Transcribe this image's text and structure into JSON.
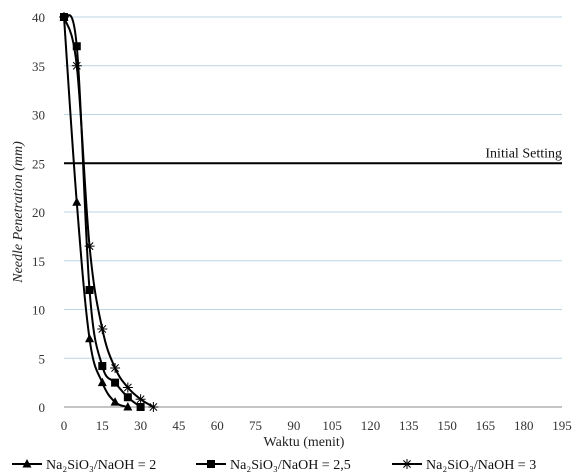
{
  "chart_data": {
    "type": "line",
    "title": "",
    "xlabel": "Waktu (menit)",
    "ylabel": "Needle Penetration (mm)",
    "xlim": [
      0,
      195
    ],
    "ylim": [
      0,
      40
    ],
    "x_ticks": [
      0,
      15,
      30,
      45,
      60,
      75,
      90,
      105,
      120,
      135,
      150,
      165,
      180,
      195
    ],
    "y_ticks": [
      0,
      5,
      10,
      15,
      20,
      25,
      30,
      35,
      40
    ],
    "grid": "horizontal",
    "legend_position": "bottom",
    "series": [
      {
        "name": "Na₂SiO₃/NaOH = 2",
        "marker": "triangle",
        "x": [
          0,
          5,
          10,
          15,
          20,
          25
        ],
        "y": [
          40,
          21,
          7,
          2.5,
          0.5,
          0
        ]
      },
      {
        "name": "Na₂SiO₃/NaOH = 2,5",
        "marker": "square",
        "x": [
          0,
          5,
          10,
          15,
          20,
          25,
          30
        ],
        "y": [
          40,
          37,
          12,
          4.2,
          2.5,
          1,
          0
        ]
      },
      {
        "name": "Na₂SiO₃/NaOH = 3",
        "marker": "star",
        "x": [
          0,
          5,
          10,
          15,
          20,
          25,
          30,
          35
        ],
        "y": [
          40,
          35,
          16.5,
          8,
          4,
          2,
          0.8,
          0
        ]
      }
    ],
    "reference_line": {
      "label": "Initial Setting",
      "y": 25
    },
    "colors": {
      "line": "#000000",
      "grid": "#bcd6e6",
      "axis": "#888888"
    }
  }
}
